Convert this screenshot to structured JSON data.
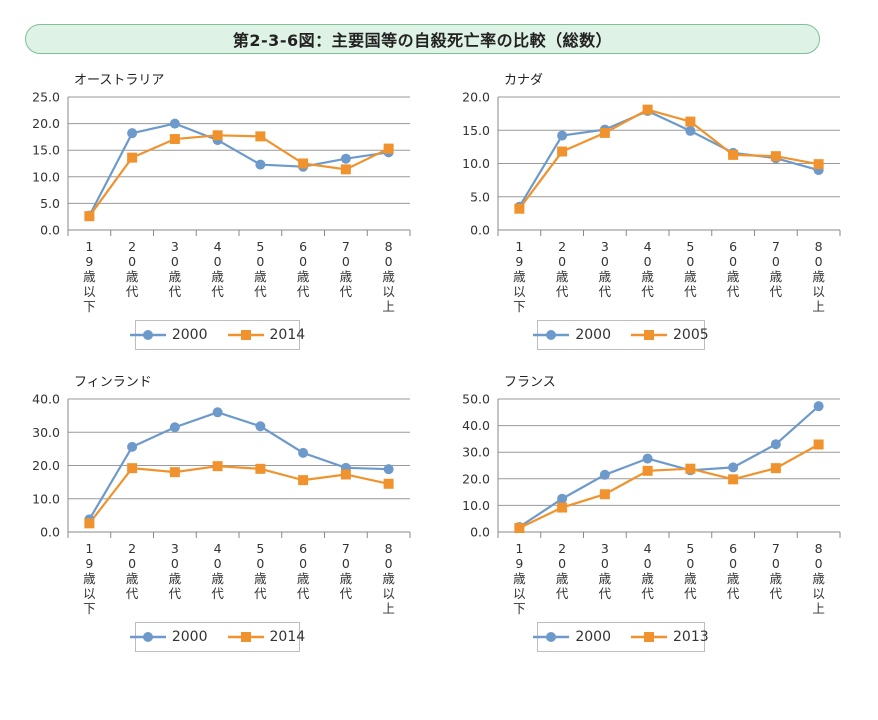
{
  "page_title": "第2-3-6図：主要国等の自殺死亡率の比較（総数）",
  "colors": {
    "series1": "#6d9acb",
    "series2": "#f0932e",
    "axis": "#888888",
    "grid": "#9a9a9a"
  },
  "chart_data": [
    {
      "type": "line",
      "title": "オーストラリア",
      "categories": [
        "19歳以下",
        "20歳代",
        "30歳代",
        "40歳代",
        "50歳代",
        "60歳代",
        "70歳代",
        "80歳以上"
      ],
      "ylim": [
        0,
        25
      ],
      "yticks": [
        "0.0",
        "5.0",
        "10.0",
        "15.0",
        "20.0",
        "25.0"
      ],
      "series": [
        {
          "name": "2000",
          "values": [
            2.7,
            18.2,
            20.0,
            16.9,
            12.3,
            11.9,
            13.4,
            14.6
          ]
        },
        {
          "name": "2014",
          "values": [
            2.6,
            13.6,
            17.1,
            17.8,
            17.6,
            12.5,
            11.4,
            15.3
          ]
        }
      ],
      "legend": "bottom"
    },
    {
      "type": "line",
      "title": "カナダ",
      "categories": [
        "19歳以下",
        "20歳代",
        "30歳代",
        "40歳代",
        "50歳代",
        "60歳代",
        "70歳代",
        "80歳以上"
      ],
      "ylim": [
        0,
        20
      ],
      "yticks": [
        "0.0",
        "5.0",
        "10.0",
        "15.0",
        "20.0"
      ],
      "series": [
        {
          "name": "2000",
          "values": [
            3.5,
            14.2,
            15.1,
            17.9,
            14.9,
            11.6,
            10.8,
            9.0
          ]
        },
        {
          "name": "2005",
          "values": [
            3.2,
            11.8,
            14.6,
            18.1,
            16.3,
            11.3,
            11.1,
            9.9
          ]
        }
      ],
      "legend": "bottom"
    },
    {
      "type": "line",
      "title": "フィンランド",
      "categories": [
        "19歳以下",
        "20歳代",
        "30歳代",
        "40歳代",
        "50歳代",
        "60歳代",
        "70歳代",
        "80歳以上"
      ],
      "ylim": [
        0,
        40
      ],
      "yticks": [
        "0.0",
        "10.0",
        "20.0",
        "30.0",
        "40.0"
      ],
      "series": [
        {
          "name": "2000",
          "values": [
            3.8,
            25.6,
            31.5,
            36.0,
            31.8,
            23.8,
            19.3,
            18.9
          ]
        },
        {
          "name": "2014",
          "values": [
            2.6,
            19.2,
            18.0,
            19.8,
            19.0,
            15.6,
            17.3,
            14.5
          ]
        }
      ],
      "legend": "bottom"
    },
    {
      "type": "line",
      "title": "フランス",
      "categories": [
        "19歳以下",
        "20歳代",
        "30歳代",
        "40歳代",
        "50歳代",
        "60歳代",
        "70歳代",
        "80歳以上"
      ],
      "ylim": [
        0,
        50
      ],
      "yticks": [
        "0.0",
        "10.0",
        "20.0",
        "30.0",
        "40.0",
        "50.0"
      ],
      "series": [
        {
          "name": "2000",
          "values": [
            1.9,
            12.5,
            21.5,
            27.6,
            23.2,
            24.3,
            33.0,
            47.3
          ]
        },
        {
          "name": "2013",
          "values": [
            1.5,
            9.2,
            14.2,
            23.0,
            23.8,
            19.8,
            24.0,
            32.9
          ]
        }
      ],
      "legend": "bottom"
    }
  ]
}
